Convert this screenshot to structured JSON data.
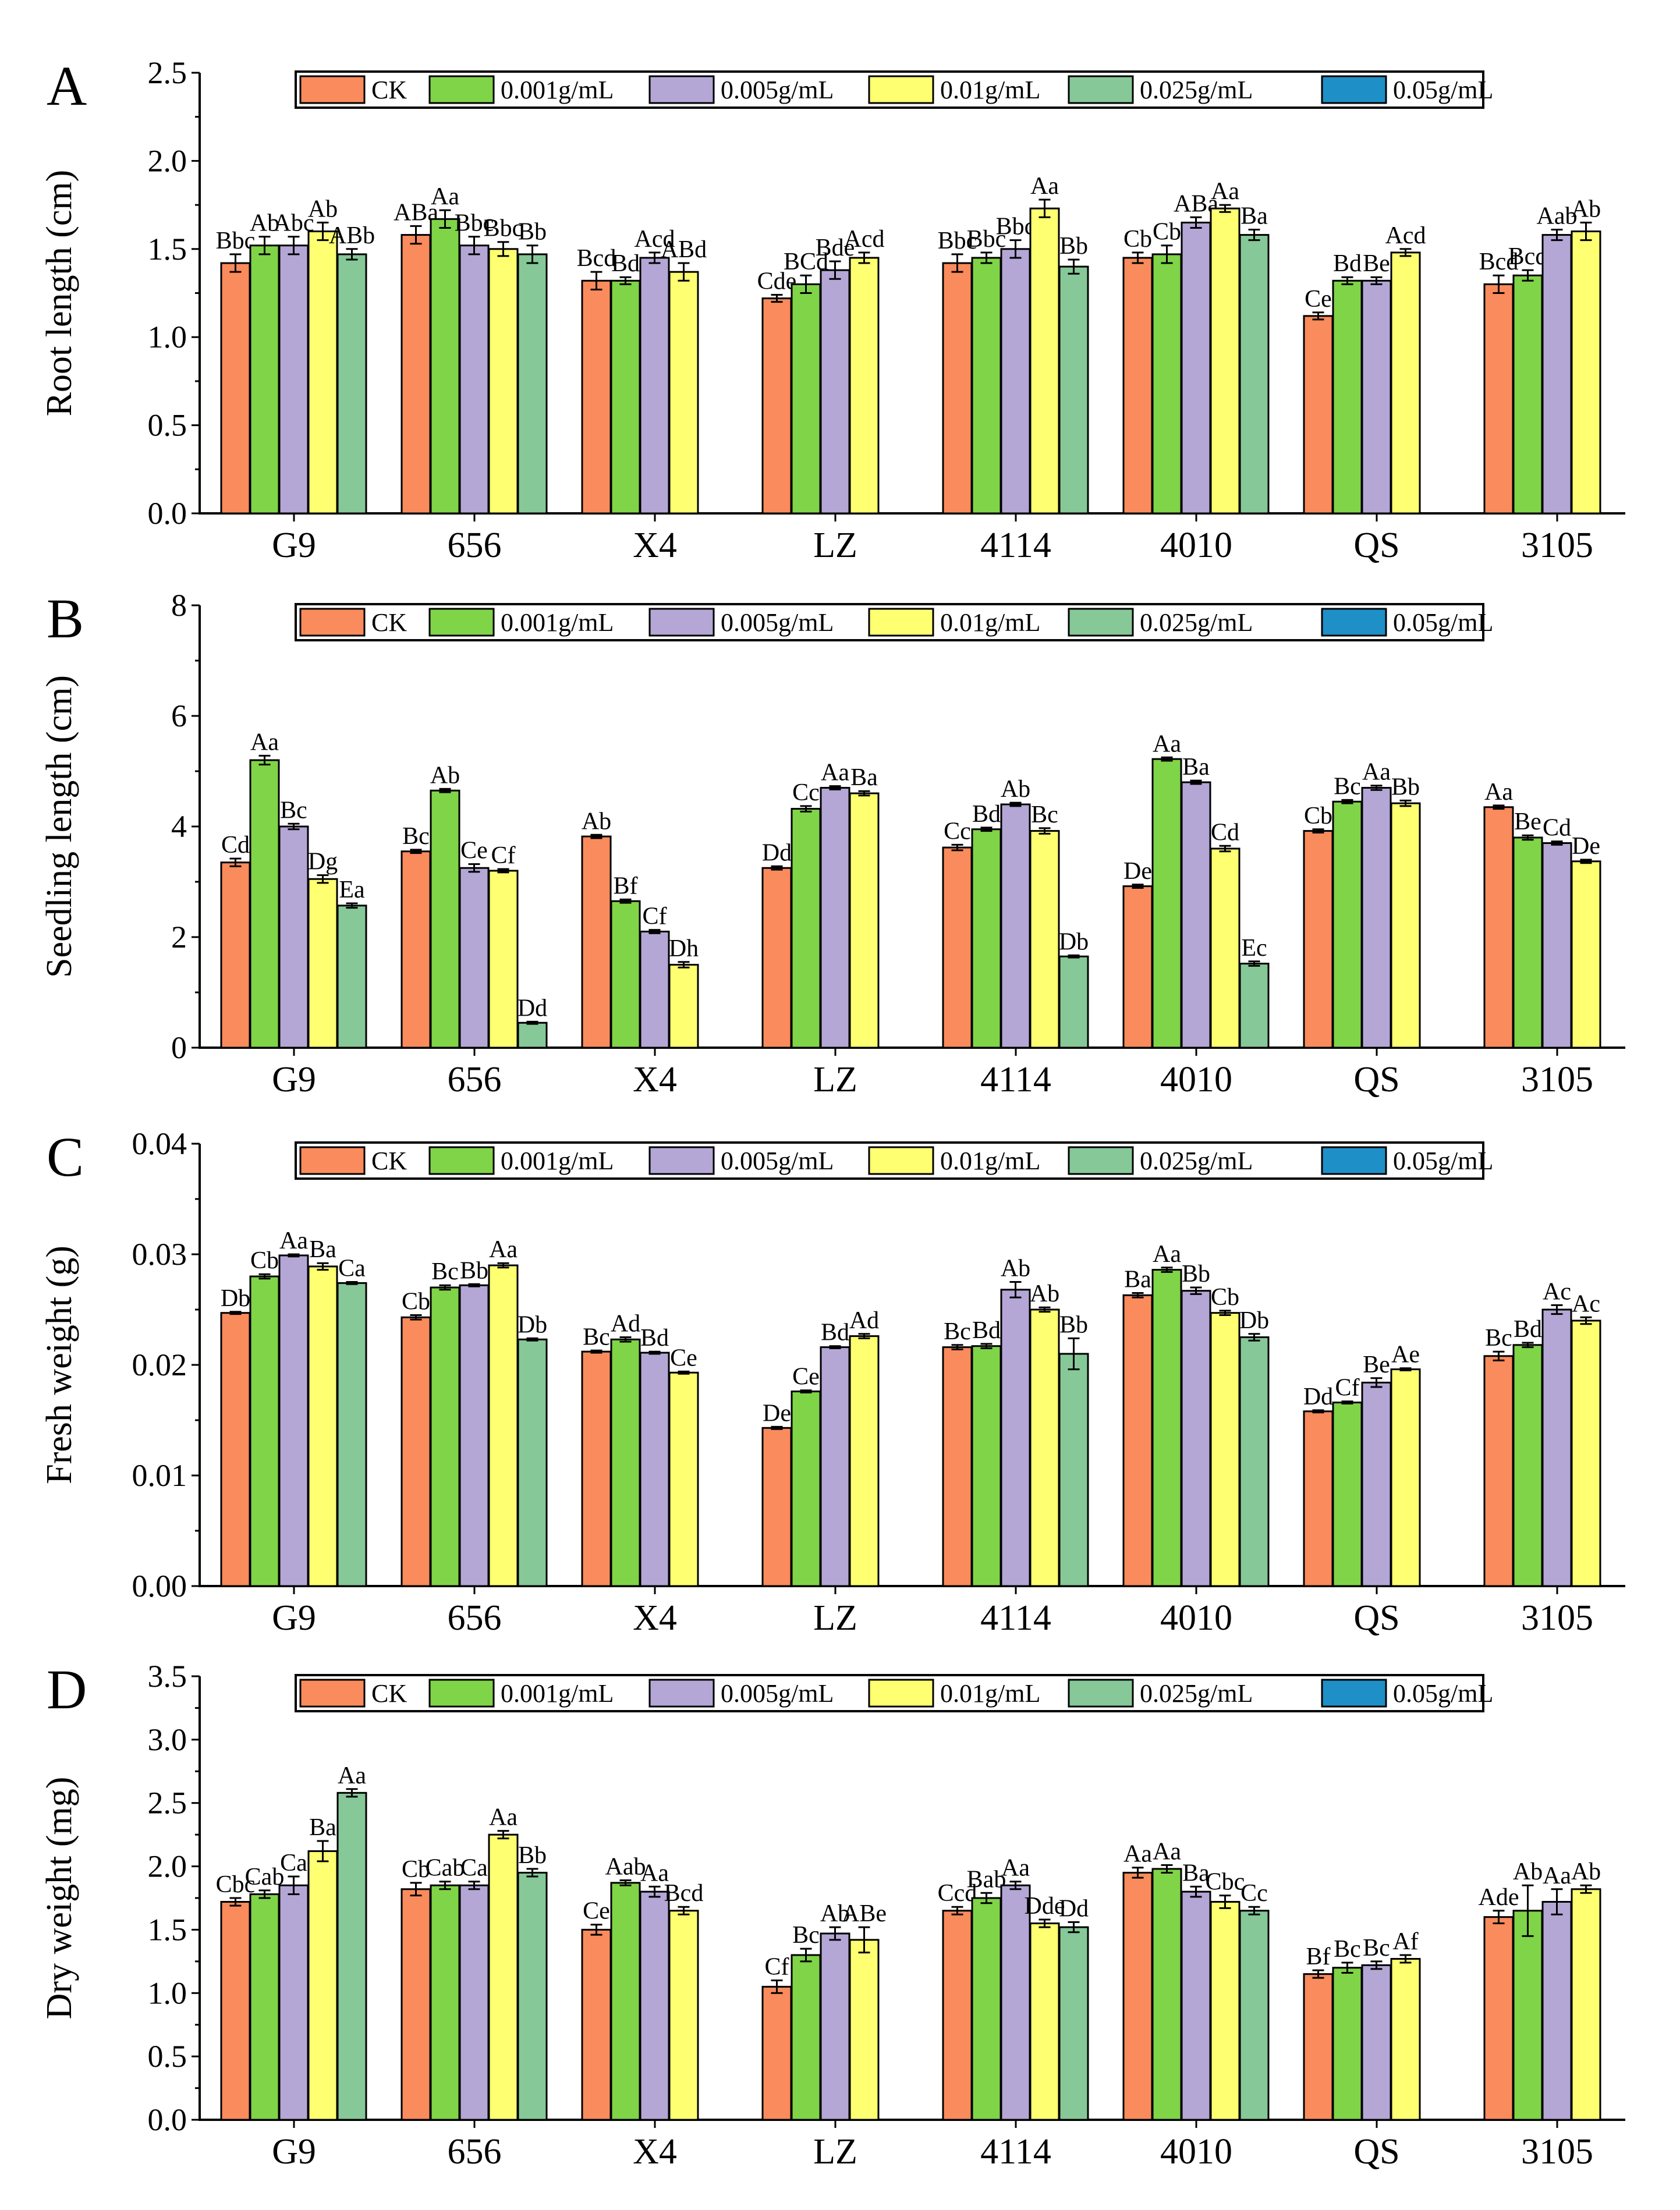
{
  "colors": {
    "CK": "#FA8B5C",
    "0.001g/mL": "#80D448",
    "0.005g/mL": "#B4A7D6",
    "0.01g/mL": "#FFFF72",
    "0.025g/mL": "#86C898",
    "0.05g/mL": "#1F8FC7"
  },
  "chart_data": [
    {
      "type": "bar",
      "panel": "A",
      "ylabel": "Root length (cm)",
      "ylim": [
        0,
        2.5
      ],
      "yticks": [
        "0.0",
        "0.5",
        "1.0",
        "1.5",
        "2.0",
        "2.5"
      ],
      "categories": [
        "G9",
        "656",
        "X4",
        "LZ",
        "4114",
        "4010",
        "QS",
        "3105"
      ],
      "legend": [
        "CK",
        "0.001g/mL",
        "0.005g/mL",
        "0.01g/mL",
        "0.025g/mL",
        "0.05g/mL"
      ],
      "series": [
        {
          "name": "CK",
          "values": [
            1.42,
            1.58,
            1.32,
            1.22,
            1.42,
            1.45,
            1.12,
            1.3
          ],
          "errors": [
            0.05,
            0.05,
            0.05,
            0.02,
            0.05,
            0.03,
            0.02,
            0.05
          ],
          "labels": [
            "Bbc",
            "ABa",
            "Bcd",
            "Cde",
            "Bbc",
            "Cb",
            "Ce",
            "Bcd"
          ]
        },
        {
          "name": "0.001g/mL",
          "values": [
            1.52,
            1.67,
            1.32,
            1.3,
            1.45,
            1.47,
            1.32,
            1.35
          ],
          "errors": [
            0.05,
            0.05,
            0.02,
            0.05,
            0.03,
            0.05,
            0.02,
            0.03
          ],
          "labels": [
            "Ab",
            "Aa",
            "Bd",
            "BCd",
            "Bbc",
            "Cb",
            "Bd",
            "Bcd"
          ]
        },
        {
          "name": "0.005g/mL",
          "values": [
            1.52,
            1.52,
            1.45,
            1.38,
            1.5,
            1.65,
            1.32,
            1.58
          ],
          "errors": [
            0.05,
            0.05,
            0.03,
            0.05,
            0.05,
            0.03,
            0.02,
            0.03
          ],
          "labels": [
            "Abc",
            "Bbc",
            "Acd",
            "Bde",
            "Bbc",
            "ABa",
            "Be",
            "Aab"
          ]
        },
        {
          "name": "0.01g/mL",
          "values": [
            1.6,
            1.5,
            1.37,
            1.45,
            1.73,
            1.73,
            1.48,
            1.6
          ],
          "errors": [
            0.05,
            0.04,
            0.05,
            0.03,
            0.05,
            0.02,
            0.02,
            0.05
          ],
          "labels": [
            "Ab",
            "Bbc",
            "ABd",
            "Acd",
            "Aa",
            "Aa",
            "Acd",
            "Ab"
          ]
        },
        {
          "name": "0.025g/mL",
          "values": [
            1.47,
            1.47,
            null,
            null,
            1.4,
            1.58,
            null,
            null
          ],
          "errors": [
            0.03,
            0.05,
            null,
            null,
            0.04,
            0.03,
            null,
            null
          ],
          "labels": [
            "ABb",
            "Bb",
            "",
            "",
            "Bb",
            "Ba",
            "",
            ""
          ]
        },
        {
          "name": "0.05g/mL",
          "values": [
            null,
            null,
            null,
            null,
            null,
            null,
            null,
            null
          ],
          "errors": [
            null,
            null,
            null,
            null,
            null,
            null,
            null,
            null
          ],
          "labels": [
            "",
            "",
            "",
            "",
            "",
            "",
            "",
            ""
          ]
        }
      ]
    },
    {
      "type": "bar",
      "panel": "B",
      "ylabel": "Seedling length (cm)",
      "ylim": [
        0,
        8
      ],
      "yticks": [
        "0",
        "2",
        "4",
        "6",
        "8"
      ],
      "categories": [
        "G9",
        "656",
        "X4",
        "LZ",
        "4114",
        "4010",
        "QS",
        "3105"
      ],
      "legend": [
        "CK",
        "0.001g/mL",
        "0.005g/mL",
        "0.01g/mL",
        "0.025g/mL",
        "0.05g/mL"
      ],
      "series": [
        {
          "name": "CK",
          "values": [
            3.35,
            3.55,
            3.82,
            3.25,
            3.62,
            2.92,
            3.92,
            4.35
          ],
          "errors": [
            0.07,
            0.03,
            0.03,
            0.03,
            0.05,
            0.03,
            0.03,
            0.03
          ],
          "labels": [
            "Cd",
            "Bc",
            "Ab",
            "Dd",
            "Cc",
            "De",
            "Cb",
            "Aa"
          ]
        },
        {
          "name": "0.001g/mL",
          "values": [
            5.2,
            4.65,
            2.65,
            4.32,
            3.95,
            5.22,
            4.45,
            3.8
          ],
          "errors": [
            0.08,
            0.03,
            0.03,
            0.05,
            0.03,
            0.03,
            0.03,
            0.04
          ],
          "labels": [
            "Aa",
            "Ab",
            "Bf",
            "Cc",
            "Bd",
            "Aa",
            "Bc",
            "Be"
          ]
        },
        {
          "name": "0.005g/mL",
          "values": [
            4.0,
            3.25,
            2.1,
            4.7,
            4.4,
            4.8,
            4.7,
            3.7
          ],
          "errors": [
            0.05,
            0.07,
            0.03,
            0.03,
            0.03,
            0.03,
            0.04,
            0.03
          ],
          "labels": [
            "Bc",
            "Ce",
            "Cf",
            "Aa",
            "Ab",
            "Ba",
            "Aa",
            "Cd"
          ]
        },
        {
          "name": "0.01g/mL",
          "values": [
            3.05,
            3.2,
            1.5,
            4.6,
            3.92,
            3.6,
            4.42,
            3.37
          ],
          "errors": [
            0.07,
            0.03,
            0.05,
            0.04,
            0.05,
            0.05,
            0.05,
            0.03
          ],
          "labels": [
            "Dg",
            "Cf",
            "Dh",
            "Ba",
            "Bc",
            "Cd",
            "Bb",
            "De"
          ]
        },
        {
          "name": "0.025g/mL",
          "values": [
            2.57,
            0.45,
            null,
            null,
            1.65,
            1.52,
            null,
            null
          ],
          "errors": [
            0.04,
            0.02,
            null,
            null,
            0.02,
            0.04,
            null,
            null
          ],
          "labels": [
            "Ea",
            "Dd",
            "",
            "",
            "Db",
            "Ec",
            "",
            ""
          ]
        },
        {
          "name": "0.05g/mL",
          "values": [
            null,
            null,
            null,
            null,
            null,
            null,
            null,
            null
          ],
          "errors": [
            null,
            null,
            null,
            null,
            null,
            null,
            null,
            null
          ],
          "labels": [
            "",
            "",
            "",
            "",
            "",
            "",
            "",
            ""
          ]
        }
      ]
    },
    {
      "type": "bar",
      "panel": "C",
      "ylabel": "Fresh weight (g)",
      "ylim": [
        0,
        0.04
      ],
      "yticks": [
        "0.00",
        "0.01",
        "0.02",
        "0.03",
        "0.04"
      ],
      "categories": [
        "G9",
        "656",
        "X4",
        "LZ",
        "4114",
        "4010",
        "QS",
        "3105"
      ],
      "legend": [
        "CK",
        "0.001g/mL",
        "0.005g/mL",
        "0.01g/mL",
        "0.025g/mL",
        "0.05g/mL"
      ],
      "series": [
        {
          "name": "CK",
          "values": [
            0.0247,
            0.0243,
            0.0212,
            0.0143,
            0.0216,
            0.0263,
            0.0158,
            0.0208
          ],
          "errors": [
            0.0001,
            0.0002,
            0.0001,
            0.0001,
            0.0002,
            0.0002,
            0.0001,
            0.0004
          ],
          "labels": [
            "Db",
            "Cb",
            "Bc",
            "De",
            "Bc",
            "Ba",
            "Dd",
            "Bc"
          ]
        },
        {
          "name": "0.001g/mL",
          "values": [
            0.028,
            0.027,
            0.0223,
            0.0176,
            0.0217,
            0.0286,
            0.0166,
            0.0218
          ],
          "errors": [
            0.0002,
            0.0002,
            0.0002,
            0.0001,
            0.0002,
            0.0002,
            0.0001,
            0.0002
          ],
          "labels": [
            "Cb",
            "Bc",
            "Ad",
            "Ce",
            "Bd",
            "Aa",
            "Cf",
            "Bd"
          ]
        },
        {
          "name": "0.005g/mL",
          "values": [
            0.0299,
            0.0272,
            0.0211,
            0.0216,
            0.0268,
            0.0267,
            0.0184,
            0.025
          ],
          "errors": [
            0.0001,
            0.0001,
            0.0001,
            0.0001,
            0.0007,
            0.0003,
            0.0004,
            0.0004
          ],
          "labels": [
            "Aa",
            "Bb",
            "Bd",
            "Bd",
            "Ab",
            "Bb",
            "Be",
            "Ac"
          ]
        },
        {
          "name": "0.01g/mL",
          "values": [
            0.0289,
            0.029,
            0.0193,
            0.0226,
            0.025,
            0.0247,
            0.0196,
            0.024
          ],
          "errors": [
            0.0003,
            0.0002,
            0.0001,
            0.0002,
            0.0002,
            0.0002,
            0.0001,
            0.0003
          ],
          "labels": [
            "Ba",
            "Aa",
            "Ce",
            "Ad",
            "Ab",
            "Cb",
            "Ae",
            "Ac"
          ]
        },
        {
          "name": "0.025g/mL",
          "values": [
            0.0274,
            0.0223,
            null,
            null,
            0.021,
            0.0225,
            null,
            null
          ],
          "errors": [
            0.0001,
            0.0001,
            null,
            null,
            0.0014,
            0.0003,
            null,
            null
          ],
          "labels": [
            "Ca",
            "Db",
            "",
            "",
            "Bb",
            "Db",
            "",
            ""
          ]
        },
        {
          "name": "0.05g/mL",
          "values": [
            null,
            null,
            null,
            null,
            null,
            null,
            null,
            null
          ],
          "errors": [
            null,
            null,
            null,
            null,
            null,
            null,
            null,
            null
          ],
          "labels": [
            "",
            "",
            "",
            "",
            "",
            "",
            "",
            ""
          ]
        }
      ]
    },
    {
      "type": "bar",
      "panel": "D",
      "ylabel": "Dry weight (mg)",
      "ylim": [
        0,
        3.5
      ],
      "yticks": [
        "0.0",
        "0.5",
        "1.0",
        "1.5",
        "2.0",
        "2.5",
        "3.0",
        "3.5"
      ],
      "categories": [
        "G9",
        "656",
        "X4",
        "LZ",
        "4114",
        "4010",
        "QS",
        "3105"
      ],
      "legend": [
        "CK",
        "0.001g/mL",
        "0.005g/mL",
        "0.01g/mL",
        "0.025g/mL",
        "0.05g/mL"
      ],
      "series": [
        {
          "name": "CK",
          "values": [
            1.72,
            1.82,
            1.5,
            1.05,
            1.65,
            1.95,
            1.15,
            1.6
          ],
          "errors": [
            0.03,
            0.05,
            0.04,
            0.05,
            0.03,
            0.04,
            0.03,
            0.05
          ],
          "labels": [
            "Cbc",
            "Cb",
            "Ce",
            "Cf",
            "Ccd",
            "Aa",
            "Bf",
            "Ade"
          ]
        },
        {
          "name": "0.001g/mL",
          "values": [
            1.78,
            1.85,
            1.87,
            1.3,
            1.75,
            1.98,
            1.2,
            1.65
          ],
          "errors": [
            0.03,
            0.03,
            0.02,
            0.05,
            0.04,
            0.03,
            0.04,
            0.2
          ],
          "labels": [
            "Cab",
            "Cab",
            "Aab",
            "Bc",
            "Bab",
            "Aa",
            "Bc",
            "Ab"
          ]
        },
        {
          "name": "0.005g/mL",
          "values": [
            1.85,
            1.85,
            1.8,
            1.47,
            1.85,
            1.8,
            1.22,
            1.72
          ],
          "errors": [
            0.07,
            0.03,
            0.04,
            0.05,
            0.03,
            0.04,
            0.03,
            0.1
          ],
          "labels": [
            "Ca",
            "Ca",
            "Aa",
            "Ab",
            "Aa",
            "Ba",
            "Bc",
            "Aa"
          ]
        },
        {
          "name": "0.01g/mL",
          "values": [
            2.12,
            2.25,
            1.65,
            1.42,
            1.55,
            1.72,
            1.27,
            1.82
          ],
          "errors": [
            0.08,
            0.03,
            0.03,
            0.1,
            0.03,
            0.05,
            0.03,
            0.03
          ],
          "labels": [
            "Ba",
            "Aa",
            "Bcd",
            "ABe",
            "Dde",
            "Cbc",
            "Af",
            "Ab"
          ]
        },
        {
          "name": "0.025g/mL",
          "values": [
            2.58,
            1.95,
            null,
            null,
            1.52,
            1.65,
            null,
            null
          ],
          "errors": [
            0.03,
            0.03,
            null,
            null,
            0.04,
            0.03,
            null,
            null
          ],
          "labels": [
            "Aa",
            "Bb",
            "",
            "",
            "Dd",
            "Cc",
            "",
            ""
          ]
        },
        {
          "name": "0.05g/mL",
          "values": [
            null,
            null,
            null,
            null,
            null,
            null,
            null,
            null
          ],
          "errors": [
            null,
            null,
            null,
            null,
            null,
            null,
            null,
            null
          ],
          "labels": [
            "",
            "",
            "",
            "",
            "",
            "",
            "",
            ""
          ]
        }
      ]
    }
  ]
}
